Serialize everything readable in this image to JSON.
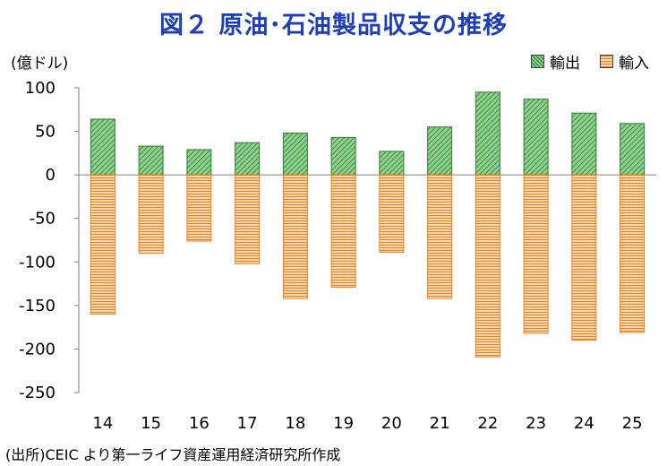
{
  "figure": {
    "title": "図２ 原油･石油製品収支の推移",
    "source": "(出所)CEIC より第一ライフ資産運用経済研究所作成"
  },
  "colors": {
    "title": "#1f3fb8",
    "export_line": "#2e7d32",
    "export_fill": "#8fd08f",
    "import_line": "#f27c1c",
    "import_fill": "#ffd9b0"
  },
  "chart_data": {
    "type": "bar",
    "stacked": true,
    "title": "図２ 原油･石油製品収支の推移",
    "ylabel": "(億ドル)",
    "xlabel": "",
    "categories": [
      "14",
      "15",
      "16",
      "17",
      "18",
      "19",
      "20",
      "21",
      "22",
      "23",
      "24",
      "25"
    ],
    "series": [
      {
        "name": "輸出",
        "values": [
          64,
          33,
          29,
          37,
          48,
          43,
          27,
          55,
          95,
          87,
          71,
          59
        ]
      },
      {
        "name": "輸入",
        "values": [
          -160,
          -90,
          -76,
          -102,
          -142,
          -129,
          -89,
          -142,
          -209,
          -182,
          -190,
          -181
        ]
      }
    ],
    "ylim": [
      -250,
      100
    ],
    "yticks": [
      100,
      50,
      0,
      -50,
      -100,
      -150,
      -200,
      -250
    ],
    "ytick_labels": [
      "100",
      "50",
      "0",
      "-50",
      "-100",
      "-150",
      "-200",
      "-250"
    ],
    "grid": false,
    "legend_position": "top-right"
  }
}
